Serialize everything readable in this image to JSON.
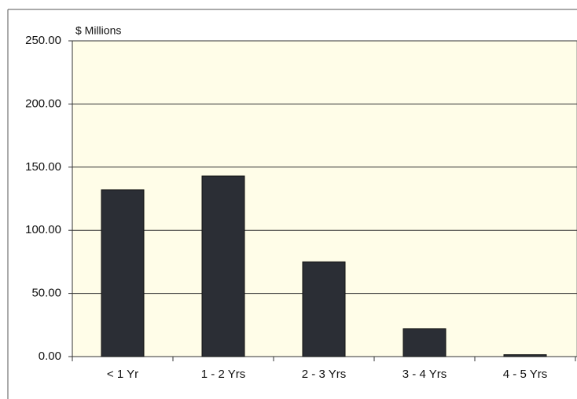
{
  "chart_data": {
    "type": "bar",
    "y_label": "$ Millions",
    "categories": [
      "< 1 Yr",
      "1 - 2 Yrs",
      "2 - 3 Yrs",
      "3 - 4 Yrs",
      "4 - 5 Yrs"
    ],
    "values": [
      132,
      143,
      75,
      22,
      1.5
    ],
    "color": "#2b2e35",
    "background": "#fffde8",
    "ylim": [
      0,
      250
    ],
    "yticks": [
      {
        "value": 0,
        "label": "0.00"
      },
      {
        "value": 50,
        "label": "50.00"
      },
      {
        "value": 100,
        "label": "100.00"
      },
      {
        "value": 150,
        "label": "150.00"
      },
      {
        "value": 200,
        "label": "200.00"
      },
      {
        "value": 250,
        "label": "250.00"
      }
    ],
    "grid": true
  }
}
